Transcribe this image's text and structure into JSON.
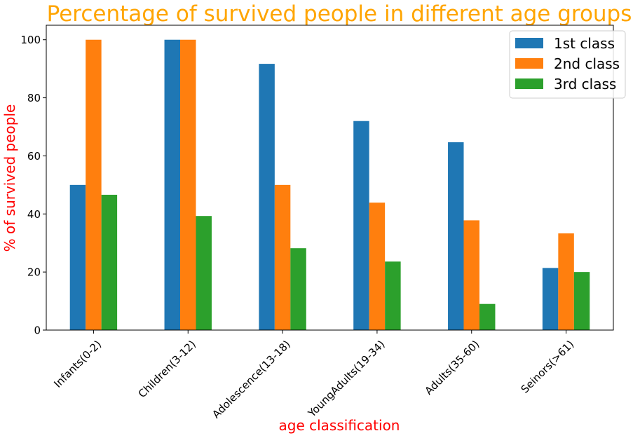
{
  "chart_data": {
    "type": "bar",
    "title": "Percentage of survived people in different age groups",
    "xlabel": "age classification",
    "ylabel": "% of survived people",
    "categories": [
      "Infants(0-2)",
      "Children(3-12)",
      "Adolescence(13-18)",
      "YoungAdults(19-34)",
      "Adults(35-60)",
      "Seinors(>61)"
    ],
    "series": [
      {
        "name": "1st class",
        "color": "#1f77b4",
        "values": [
          50.0,
          100.0,
          91.7,
          72.0,
          64.7,
          21.4
        ]
      },
      {
        "name": "2nd class",
        "color": "#ff7f0e",
        "values": [
          100.0,
          100.0,
          50.0,
          43.9,
          37.8,
          33.3
        ]
      },
      {
        "name": "3rd class",
        "color": "#2ca02c",
        "values": [
          46.6,
          39.3,
          28.2,
          23.6,
          9.0,
          20.0
        ]
      }
    ],
    "ylim": [
      0,
      105
    ],
    "yticks": [
      0,
      20,
      40,
      60,
      80,
      100
    ],
    "legend_position": "top-right",
    "grid": false,
    "title_color": "#ffa500",
    "label_color": "#ff0000"
  }
}
